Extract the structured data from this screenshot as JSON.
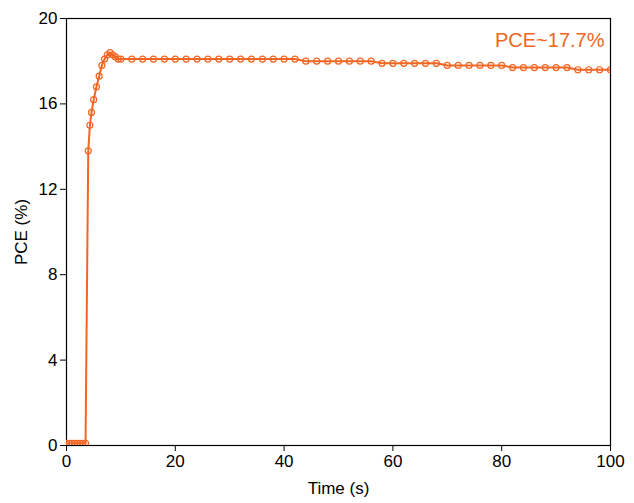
{
  "chart_data": {
    "type": "line",
    "x_label": "Time (s)",
    "y_label": "PCE (%)",
    "annotation": "PCE~17.7%",
    "xlim": [
      0,
      100
    ],
    "xticks": [
      0,
      20,
      40,
      60,
      80,
      100
    ],
    "ylim": [
      0,
      20
    ],
    "yticks": [
      0,
      4,
      8,
      12,
      16,
      20
    ],
    "grid": false,
    "color": "#f26522",
    "marker": "circle",
    "x": [
      0,
      0.5,
      1,
      1.5,
      2,
      2.5,
      3,
      3.5,
      4,
      4.3,
      4.6,
      5,
      5.5,
      6,
      6.5,
      7,
      7.5,
      8,
      8.5,
      9,
      9.5,
      10,
      12,
      14,
      16,
      18,
      20,
      22,
      24,
      26,
      28,
      30,
      32,
      34,
      36,
      38,
      40,
      42,
      44,
      46,
      48,
      50,
      52,
      54,
      56,
      58,
      60,
      62,
      64,
      66,
      68,
      70,
      72,
      74,
      76,
      78,
      80,
      82,
      84,
      86,
      88,
      90,
      92,
      94,
      96,
      98,
      100
    ],
    "values": [
      0.1,
      0.1,
      0.1,
      0.1,
      0.1,
      0.1,
      0.1,
      0.1,
      13.8,
      15.0,
      15.6,
      16.2,
      16.8,
      17.3,
      17.8,
      18.1,
      18.3,
      18.4,
      18.3,
      18.2,
      18.1,
      18.1,
      18.1,
      18.1,
      18.1,
      18.1,
      18.1,
      18.1,
      18.1,
      18.1,
      18.1,
      18.1,
      18.1,
      18.1,
      18.1,
      18.1,
      18.1,
      18.1,
      18.0,
      18.0,
      18.0,
      18.0,
      18.0,
      18.0,
      18.0,
      17.9,
      17.9,
      17.9,
      17.9,
      17.9,
      17.9,
      17.8,
      17.8,
      17.8,
      17.8,
      17.8,
      17.8,
      17.7,
      17.7,
      17.7,
      17.7,
      17.7,
      17.7,
      17.6,
      17.6,
      17.6,
      17.6
    ]
  }
}
